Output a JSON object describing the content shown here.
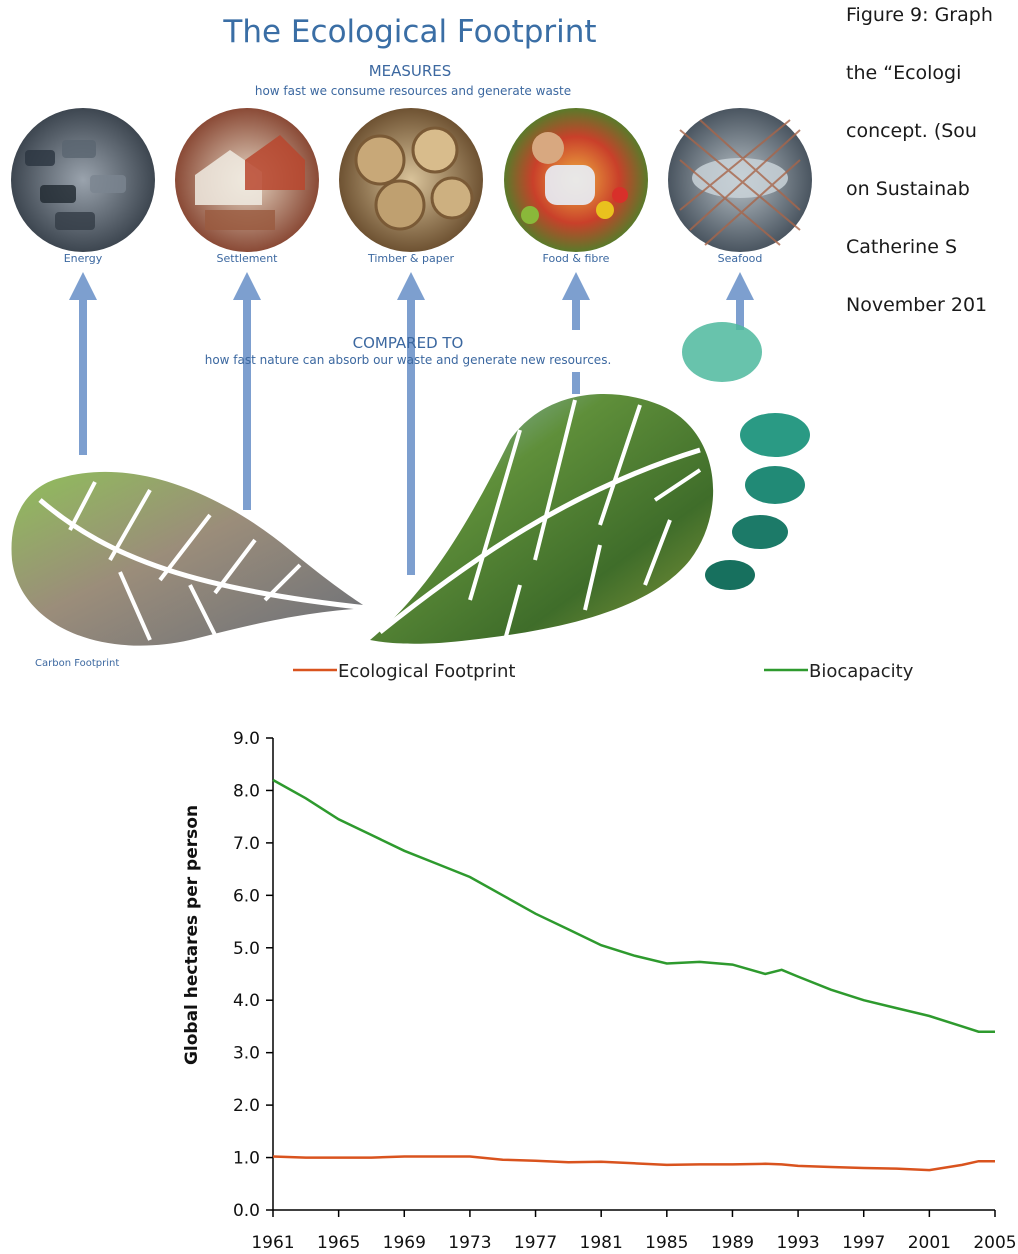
{
  "infographic": {
    "title": "The Ecological Footprint",
    "measures_heading": "MEASURES",
    "measures_text": "how fast we consume resources and generate waste",
    "categories": [
      {
        "label": "Energy",
        "icon": "traffic-jam-photo"
      },
      {
        "label": "Settlement",
        "icon": "town-rooftops-photo"
      },
      {
        "label": "Timber & paper",
        "icon": "log-stack-photo"
      },
      {
        "label": "Food & fibre",
        "icon": "market-produce-photo"
      },
      {
        "label": "Seafood",
        "icon": "fish-in-net-photo"
      }
    ],
    "compared_heading": "COMPARED TO",
    "compared_text": "how fast nature can absorb our waste and generate new resources.",
    "carbon_label": "Carbon Footprint",
    "colors": {
      "title": "#3a6ea5",
      "arrow": "#7d9fcf",
      "text": "#3c68a0",
      "teal": "#2a8f7c"
    }
  },
  "caption": {
    "lines": [
      "Figure 9: Graph",
      "the “Ecologi",
      "concept. (Sou",
      "on Sustainab",
      "Catherine S",
      "November 201"
    ]
  },
  "chart_data": {
    "type": "line",
    "xlabel": "",
    "ylabel": "Global hectares per person",
    "ylim": [
      0,
      9
    ],
    "yticks": [
      "0.0",
      "1.0",
      "2.0",
      "3.0",
      "4.0",
      "5.0",
      "6.0",
      "7.0",
      "8.0",
      "9.0"
    ],
    "xticks": [
      "1961",
      "1965",
      "1969",
      "1973",
      "1977",
      "1981",
      "1985",
      "1989",
      "1993",
      "1997",
      "2001",
      "2005"
    ],
    "x": [
      1961,
      1963,
      1965,
      1967,
      1969,
      1971,
      1973,
      1975,
      1977,
      1979,
      1981,
      1983,
      1985,
      1987,
      1989,
      1991,
      1992,
      1993,
      1995,
      1997,
      1999,
      2001,
      2003,
      2004,
      2005
    ],
    "series": [
      {
        "name": "Ecological Footprint",
        "color": "#d9531e",
        "values": [
          1.02,
          1.0,
          1.0,
          1.0,
          1.02,
          1.02,
          1.02,
          0.96,
          0.94,
          0.91,
          0.92,
          0.89,
          0.86,
          0.87,
          0.87,
          0.88,
          0.87,
          0.84,
          0.82,
          0.8,
          0.79,
          0.76,
          0.86,
          0.93,
          0.93
        ]
      },
      {
        "name": "Biocapacity",
        "color": "#2e9a2e",
        "values": [
          8.2,
          7.85,
          7.45,
          7.15,
          6.85,
          6.6,
          6.35,
          6.0,
          5.65,
          5.35,
          5.05,
          4.85,
          4.7,
          4.73,
          4.68,
          4.5,
          4.58,
          4.45,
          4.2,
          4.0,
          3.85,
          3.7,
          3.5,
          3.4,
          3.4
        ]
      }
    ],
    "legend": "top"
  }
}
